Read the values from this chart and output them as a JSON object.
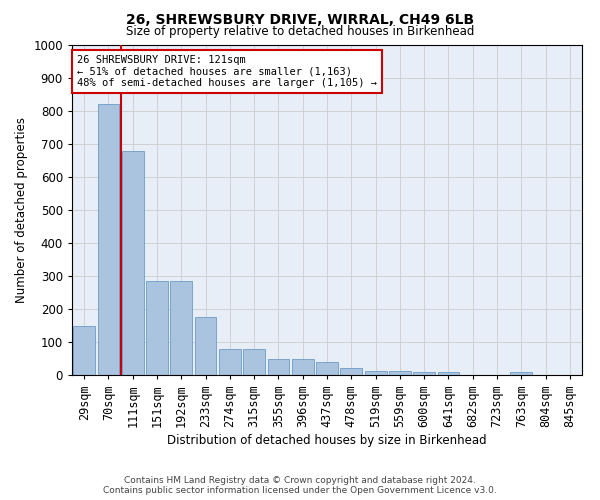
{
  "title1": "26, SHREWSBURY DRIVE, WIRRAL, CH49 6LB",
  "title2": "Size of property relative to detached houses in Birkenhead",
  "xlabel": "Distribution of detached houses by size in Birkenhead",
  "ylabel": "Number of detached properties",
  "categories": [
    "29sqm",
    "70sqm",
    "111sqm",
    "151sqm",
    "192sqm",
    "233sqm",
    "274sqm",
    "315sqm",
    "355sqm",
    "396sqm",
    "437sqm",
    "478sqm",
    "519sqm",
    "559sqm",
    "600sqm",
    "641sqm",
    "682sqm",
    "723sqm",
    "763sqm",
    "804sqm",
    "845sqm"
  ],
  "values": [
    150,
    820,
    680,
    285,
    285,
    175,
    78,
    78,
    50,
    50,
    40,
    22,
    12,
    12,
    10,
    10,
    0,
    0,
    10,
    0,
    0
  ],
  "bar_color": "#aac4e0",
  "bar_edge_color": "#5a8fc0",
  "vline_x_index": 2,
  "annotation_line1": "26 SHREWSBURY DRIVE: 121sqm",
  "annotation_line2": "← 51% of detached houses are smaller (1,163)",
  "annotation_line3": "48% of semi-detached houses are larger (1,105) →",
  "vline_color": "#cc0000",
  "annotation_box_edge": "#cc0000",
  "ylim": [
    0,
    1000
  ],
  "yticks": [
    0,
    100,
    200,
    300,
    400,
    500,
    600,
    700,
    800,
    900,
    1000
  ],
  "grid_color": "#cccccc",
  "bg_color": "#e8eef7",
  "footer1": "Contains HM Land Registry data © Crown copyright and database right 2024.",
  "footer2": "Contains public sector information licensed under the Open Government Licence v3.0."
}
